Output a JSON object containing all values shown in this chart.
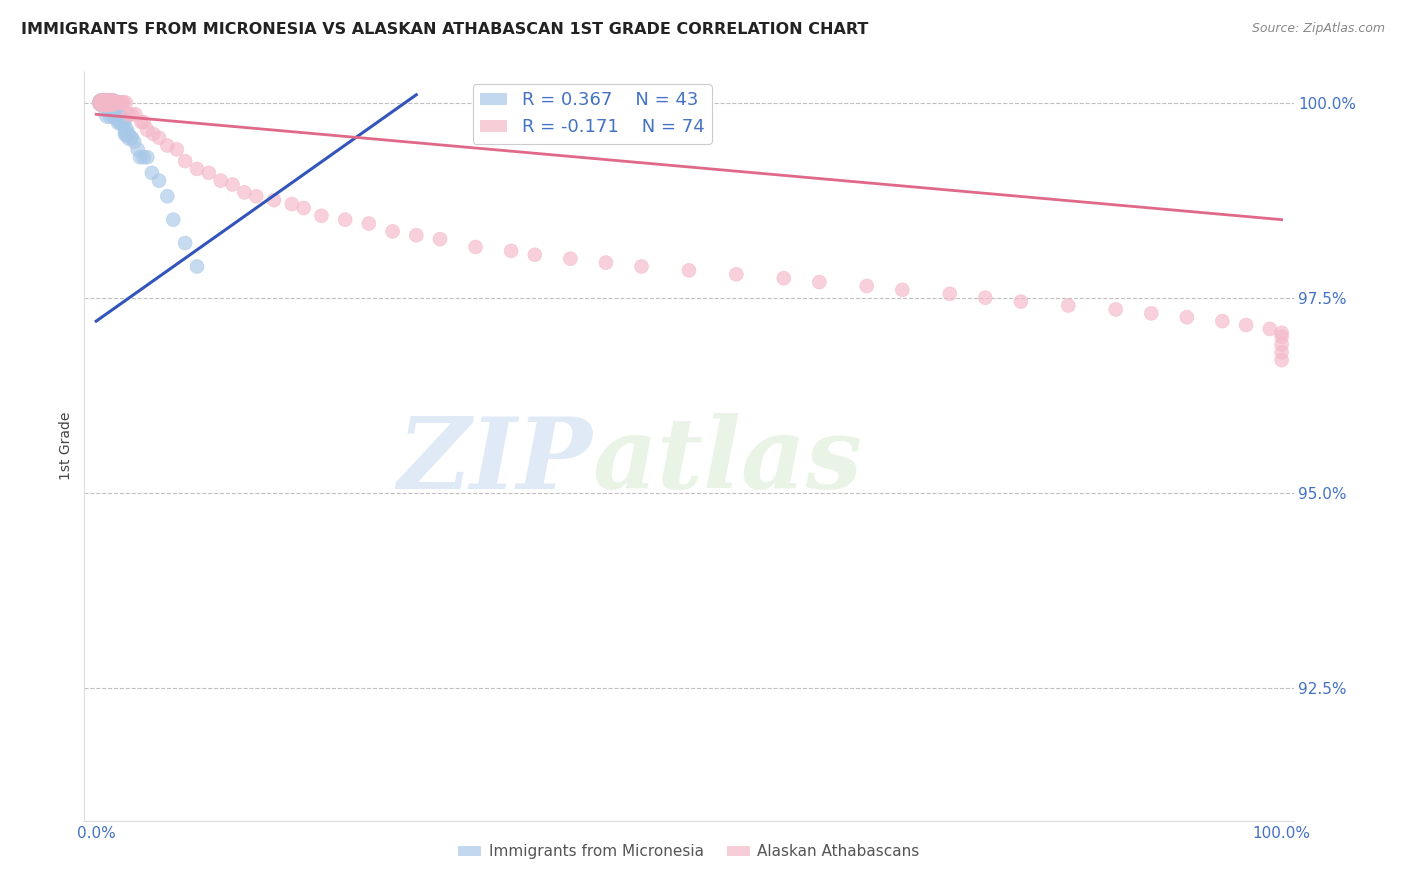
{
  "title": "IMMIGRANTS FROM MICRONESIA VS ALASKAN ATHABASCAN 1ST GRADE CORRELATION CHART",
  "source": "Source: ZipAtlas.com",
  "ylabel": "1st Grade",
  "xlim": [
    -0.01,
    1.01
  ],
  "ylim": [
    0.908,
    1.004
  ],
  "yticks": [
    0.925,
    0.95,
    0.975,
    1.0
  ],
  "ytick_labels": [
    "92.5%",
    "95.0%",
    "97.5%",
    "100.0%"
  ],
  "xticks": [
    0.0,
    0.2,
    0.4,
    0.6,
    0.8,
    1.0
  ],
  "xtick_labels": [
    "0.0%",
    "",
    "",
    "",
    "",
    "100.0%"
  ],
  "blue_color": "#a8c8e8",
  "pink_color": "#f4b8c8",
  "blue_line_color": "#3355bb",
  "pink_line_color": "#e06888",
  "legend_blue_r": "R = 0.367",
  "legend_blue_n": "N = 43",
  "legend_pink_r": "R = -0.171",
  "legend_pink_n": "N = 74",
  "blue_scatter_x": [
    0.005,
    0.005,
    0.005,
    0.007,
    0.007,
    0.008,
    0.008,
    0.009,
    0.009,
    0.01,
    0.011,
    0.012,
    0.013,
    0.013,
    0.014,
    0.015,
    0.015,
    0.016,
    0.016,
    0.017,
    0.018,
    0.019,
    0.02,
    0.02,
    0.021,
    0.022,
    0.023,
    0.025,
    0.025,
    0.026,
    0.028,
    0.03,
    0.032,
    0.035,
    0.037,
    0.04,
    0.043,
    0.047,
    0.053,
    0.06,
    0.065,
    0.075,
    0.085
  ],
  "blue_scatter_y": [
    1.0,
    1.0,
    1.0,
    1.0,
    1.0,
    1.0,
    1.0,
    1.0,
    1.0,
    0.9985,
    1.0,
    1.0,
    1.0,
    0.9985,
    1.0,
    1.0,
    0.9985,
    1.0,
    0.9985,
    0.9985,
    0.998,
    0.9975,
    0.998,
    0.9985,
    0.9975,
    0.9975,
    0.9975,
    0.9965,
    0.996,
    0.996,
    0.9955,
    0.9955,
    0.995,
    0.994,
    0.993,
    0.993,
    0.993,
    0.991,
    0.99,
    0.988,
    0.985,
    0.982,
    0.979
  ],
  "pink_scatter_x": [
    0.004,
    0.005,
    0.006,
    0.007,
    0.008,
    0.009,
    0.01,
    0.011,
    0.012,
    0.013,
    0.014,
    0.015,
    0.016,
    0.017,
    0.018,
    0.019,
    0.02,
    0.021,
    0.022,
    0.023,
    0.025,
    0.027,
    0.03,
    0.033,
    0.038,
    0.04,
    0.043,
    0.048,
    0.053,
    0.06,
    0.068,
    0.075,
    0.085,
    0.095,
    0.105,
    0.115,
    0.125,
    0.135,
    0.15,
    0.165,
    0.175,
    0.19,
    0.21,
    0.23,
    0.25,
    0.27,
    0.29,
    0.32,
    0.35,
    0.37,
    0.4,
    0.43,
    0.46,
    0.5,
    0.54,
    0.58,
    0.61,
    0.65,
    0.68,
    0.72,
    0.75,
    0.78,
    0.82,
    0.86,
    0.89,
    0.92,
    0.95,
    0.97,
    0.99,
    1.0,
    1.0,
    1.0,
    1.0,
    1.0
  ],
  "pink_scatter_y": [
    1.0,
    1.0,
    1.0,
    1.0,
    1.0,
    1.0,
    1.0,
    1.0,
    1.0,
    1.0,
    1.0,
    1.0,
    1.0,
    1.0,
    1.0,
    1.0,
    1.0,
    1.0,
    1.0,
    1.0,
    1.0,
    0.9985,
    0.9985,
    0.9985,
    0.9975,
    0.9975,
    0.9965,
    0.996,
    0.9955,
    0.9945,
    0.994,
    0.9925,
    0.9915,
    0.991,
    0.99,
    0.9895,
    0.9885,
    0.988,
    0.9875,
    0.987,
    0.9865,
    0.9855,
    0.985,
    0.9845,
    0.9835,
    0.983,
    0.9825,
    0.9815,
    0.981,
    0.9805,
    0.98,
    0.9795,
    0.979,
    0.9785,
    0.978,
    0.9775,
    0.977,
    0.9765,
    0.976,
    0.9755,
    0.975,
    0.9745,
    0.974,
    0.9735,
    0.973,
    0.9725,
    0.972,
    0.9715,
    0.971,
    0.9705,
    0.97,
    0.969,
    0.968,
    0.967
  ],
  "blue_line_x0": 0.0,
  "blue_line_x1": 0.27,
  "blue_line_y0": 0.972,
  "blue_line_y1": 1.001,
  "pink_line_x0": 0.0,
  "pink_line_x1": 1.0,
  "pink_line_y0": 0.9985,
  "pink_line_y1": 0.985,
  "watermark_zip": "ZIP",
  "watermark_atlas": "atlas",
  "background_color": "#ffffff",
  "tick_color": "#4472c4",
  "grid_color": "#c0c0c0"
}
